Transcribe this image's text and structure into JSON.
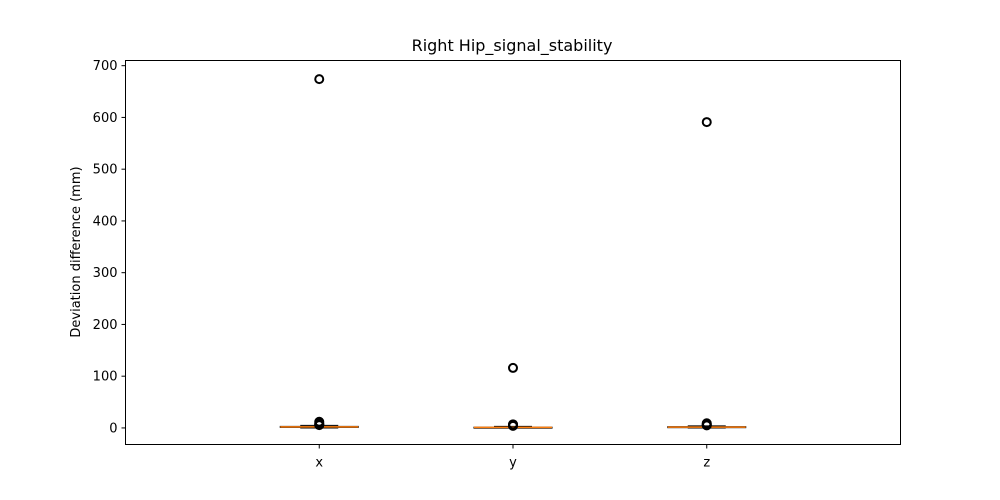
{
  "chart_data": {
    "type": "box",
    "title": "Right Hip_signal_stability",
    "xlabel": "",
    "ylabel": "Deviation difference (mm)",
    "categories": [
      "x",
      "y",
      "z"
    ],
    "ylim": [
      -32,
      710
    ],
    "yticks": [
      0,
      100,
      200,
      300,
      400,
      500,
      600,
      700
    ],
    "grid": false,
    "boxes": [
      {
        "category": "x",
        "whisker_low": 0,
        "q1": 1,
        "median": 2,
        "q3": 3,
        "whisker_high": 5,
        "outliers": [
          674,
          12,
          9,
          7,
          6,
          5.5
        ]
      },
      {
        "category": "y",
        "whisker_low": 0,
        "q1": 0.5,
        "median": 1,
        "q3": 1.5,
        "whisker_high": 3,
        "outliers": [
          116,
          7,
          6,
          5,
          4
        ]
      },
      {
        "category": "z",
        "whisker_low": 0,
        "q1": 0.5,
        "median": 1.5,
        "q3": 2.5,
        "whisker_high": 4,
        "outliers": [
          591,
          9,
          7,
          6,
          5
        ]
      }
    ],
    "colors": {
      "box": "#000000",
      "median": "#ff7f0e",
      "outlier": "#000000",
      "axes": "#000000"
    }
  }
}
